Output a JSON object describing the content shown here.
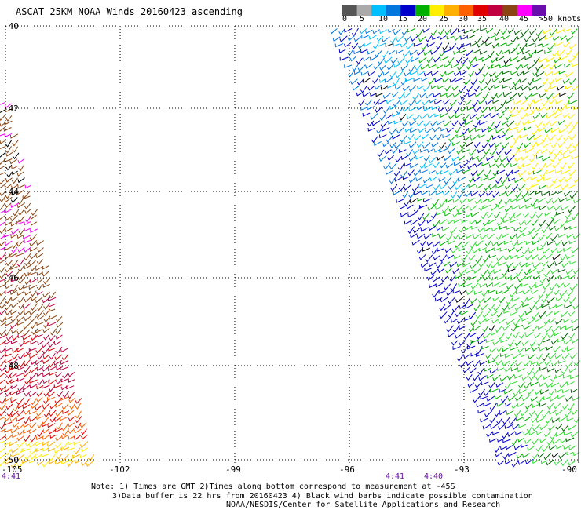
{
  "title": "ASCAT 25KM NOAA Winds 20160423 ascending",
  "legend": {
    "labels": [
      "0",
      "5",
      "10",
      "15",
      "20",
      "25",
      "30",
      "35",
      "40",
      "45",
      ">50 knots"
    ],
    "colors": [
      "#555555",
      "#aaaaaa",
      "#00bfff",
      "#0077dd",
      "#0000cc",
      "#00b000",
      "#ffee00",
      "#ffb000",
      "#ff6000",
      "#e00000",
      "#c00040",
      "#8b4513",
      "#ff00ff",
      "#6a0dad"
    ]
  },
  "axes": {
    "lat_labels": [
      "-40",
      "-42",
      "-44",
      "-46",
      "-48",
      "-50"
    ],
    "lon_labels": [
      "-105",
      "-102",
      "-99",
      "-96",
      "-93",
      "-90"
    ]
  },
  "time_labels": {
    "left": "4:41",
    "mid1": "4:41",
    "mid2": "4:40"
  },
  "notes": {
    "line1": "Note: 1) Times are GMT 2)Times along bottom correspond to measurement at -45S",
    "line2": "3)Data buffer is 22 hrs from 20160423 4) Black wind barbs indicate possible contamination",
    "line3": "NOAA/NESDIS/Center for Satellite Applications and Research"
  }
}
